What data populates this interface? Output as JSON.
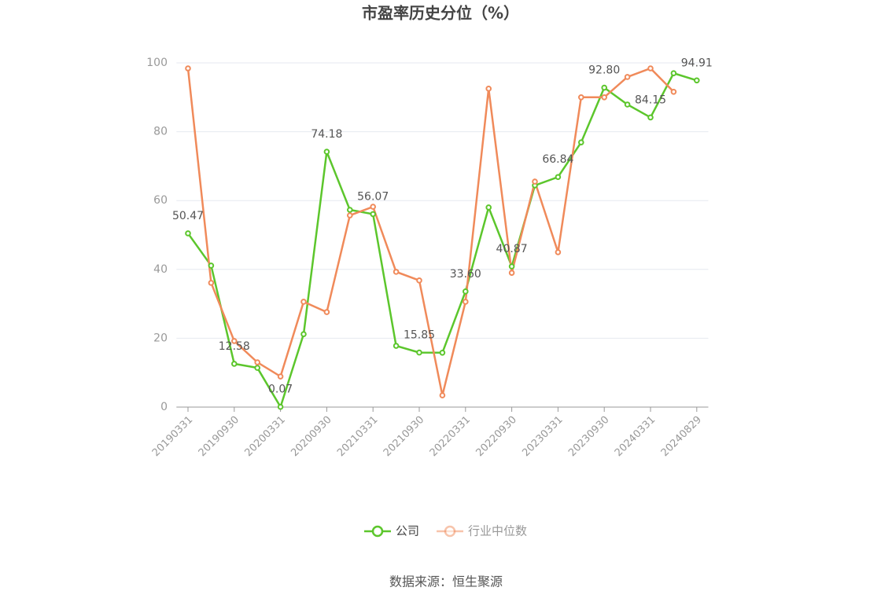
{
  "chart_data": {
    "type": "line",
    "title": "市盈率历史分位（%）",
    "categories": [
      "20190331",
      null,
      "20190930",
      null,
      "20200331",
      null,
      "20200930",
      null,
      "20210331",
      null,
      "20210930",
      null,
      "20220331",
      null,
      "20220930",
      null,
      "20230331",
      null,
      "20230930",
      null,
      "20240331",
      null,
      "20240829"
    ],
    "series": [
      {
        "name": "公司",
        "color": "#5cc62c",
        "values": [
          50.47,
          41.1,
          12.58,
          11.4,
          0.07,
          21.2,
          74.18,
          57.3,
          56.07,
          17.8,
          15.85,
          15.8,
          33.6,
          58.0,
          40.87,
          64.4,
          66.84,
          76.9,
          92.8,
          87.9,
          84.15,
          97.0,
          94.91
        ],
        "value_labels": [
          "50.47",
          null,
          "12.58",
          null,
          "0.07",
          null,
          "74.18",
          null,
          "56.07",
          null,
          "15.85",
          null,
          "33.60",
          null,
          "40.87",
          null,
          "66.84",
          null,
          "92.80",
          null,
          "84.15",
          null,
          "94.91"
        ]
      },
      {
        "name": "行业中位数",
        "color": "#f08a5a",
        "values": [
          98.4,
          36.1,
          19.2,
          13.0,
          8.9,
          30.6,
          27.6,
          55.7,
          58.2,
          39.3,
          36.8,
          3.4,
          30.6,
          92.5,
          39.0,
          65.5,
          45.0,
          90.0,
          90.0,
          95.9,
          98.4,
          91.6,
          null
        ]
      }
    ],
    "ylim": [
      0,
      100
    ],
    "yticks": [
      0,
      20,
      40,
      60,
      80,
      100
    ],
    "grid": true,
    "source": "数据来源：恒生聚源"
  }
}
